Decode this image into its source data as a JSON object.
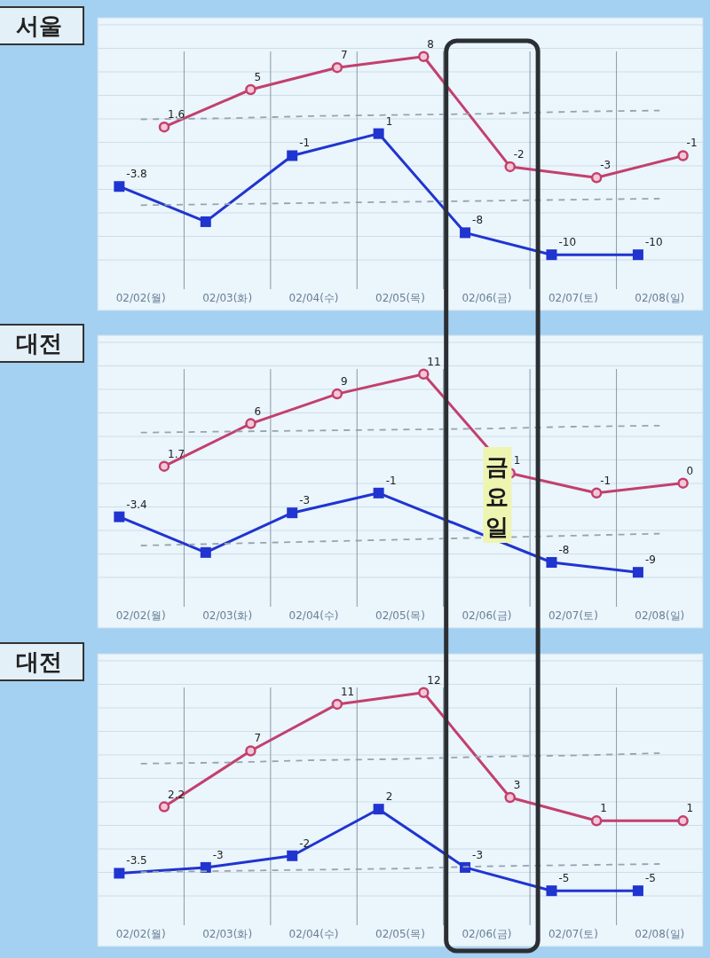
{
  "chart_data": [
    {
      "type": "line",
      "title": "서울",
      "categories": [
        "02/02(월)",
        "02/03(화)",
        "02/04(수)",
        "02/05(목)",
        "02/06(금)",
        "02/07(토)",
        "02/08(일)"
      ],
      "grid": true,
      "series": [
        {
          "color": "#c2406e",
          "marker": "circle",
          "values": [
            1.6,
            5,
            7,
            8,
            -2,
            -3,
            -1
          ],
          "value_labels": [
            "1.6",
            "5",
            "7",
            "8",
            "-2",
            "-3",
            "-1"
          ]
        },
        {
          "color": "#2034d0",
          "marker": "square",
          "values": [
            -3.8,
            -7,
            -1,
            1,
            -8,
            -10,
            -10
          ],
          "value_labels": [
            "-3.8",
            null,
            "-1",
            "1",
            "-8",
            "-10",
            "-10"
          ]
        },
        {
          "color": "#9aa3ad",
          "marker": "none",
          "line_style": "dashed",
          "values": [
            2.3,
            2.4,
            2.6,
            2.7,
            2.8,
            3.0,
            3.1
          ]
        },
        {
          "color": "#9aa3ad",
          "marker": "none",
          "line_style": "dashed",
          "values": [
            -5.5,
            -5.4,
            -5.3,
            -5.2,
            -5.1,
            -5.0,
            -4.9
          ]
        }
      ]
    },
    {
      "type": "line",
      "title": "대전",
      "categories": [
        "02/02(월)",
        "02/03(화)",
        "02/04(수)",
        "02/05(목)",
        "02/06(금)",
        "02/07(토)",
        "02/08(일)"
      ],
      "grid": true,
      "bands": [
        {
          "axis": "x",
          "from": "02/06(금)",
          "to": "02/06(금)",
          "label": "금요일"
        }
      ],
      "series": [
        {
          "color": "#c2406e",
          "marker": "circle",
          "values": [
            1.7,
            6,
            9,
            11,
            1,
            -1,
            0
          ],
          "value_labels": [
            "1.7",
            "6",
            "9",
            "11",
            "1",
            "-1",
            "0"
          ]
        },
        {
          "color": "#2034d0",
          "marker": "square",
          "values": [
            -3.4,
            -7,
            -3,
            -1,
            null,
            -8,
            -9
          ],
          "value_labels": [
            "-3.4",
            null,
            "-3",
            "-1",
            null,
            "-8",
            "-9"
          ]
        },
        {
          "color": "#9aa3ad",
          "marker": "none",
          "line_style": "dashed",
          "values": [
            5.1,
            5.2,
            5.3,
            5.4,
            5.5,
            5.7,
            5.8
          ]
        },
        {
          "color": "#9aa3ad",
          "marker": "none",
          "line_style": "dashed",
          "values": [
            -6.3,
            -6.1,
            -5.9,
            -5.7,
            -5.5,
            -5.3,
            -5.1
          ]
        }
      ]
    },
    {
      "type": "line",
      "title": "대전",
      "categories": [
        "02/02(월)",
        "02/03(화)",
        "02/04(수)",
        "02/05(목)",
        "02/06(금)",
        "02/07(토)",
        "02/08(일)"
      ],
      "grid": true,
      "series": [
        {
          "color": "#c2406e",
          "marker": "circle",
          "values": [
            2.2,
            7,
            11,
            12,
            3,
            1,
            1
          ],
          "value_labels": [
            "2.2",
            "7",
            "11",
            "12",
            "3",
            "1",
            "1"
          ]
        },
        {
          "color": "#2034d0",
          "marker": "square",
          "values": [
            -3.5,
            -3,
            -2,
            2,
            -3,
            -5,
            -5
          ],
          "value_labels": [
            "-3.5",
            "-3",
            "-2",
            "2",
            "-3",
            "-5",
            "-5"
          ]
        },
        {
          "color": "#9aa3ad",
          "marker": "none",
          "line_style": "dashed",
          "values": [
            5.9,
            6.0,
            6.2,
            6.3,
            6.5,
            6.6,
            6.8
          ]
        },
        {
          "color": "#9aa3ad",
          "marker": "none",
          "line_style": "dashed",
          "values": [
            -3.4,
            -3.3,
            -3.2,
            -3.1,
            -2.9,
            -2.8,
            -2.7
          ]
        }
      ]
    }
  ]
}
